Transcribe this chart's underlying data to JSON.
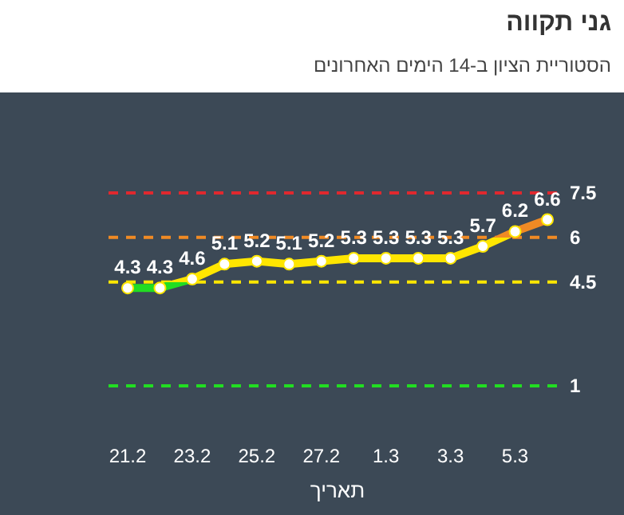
{
  "chart_data": {
    "type": "line",
    "title": "גני תקווה",
    "subtitle": "הסטוריית הציון ב-14 הימים האחרונים",
    "xlabel": "תאריך",
    "categories": [
      "21.2",
      null,
      "23.2",
      null,
      "25.2",
      null,
      "27.2",
      null,
      "1.3",
      null,
      "3.3",
      null,
      "5.3",
      null
    ],
    "series": [
      {
        "color": "#ffe600",
        "values": [
          4.3,
          4.3,
          4.6,
          5.1,
          5.2,
          5.1,
          5.2,
          5.3,
          5.3,
          5.3,
          5.3,
          5.7,
          6.2,
          6.6
        ]
      }
    ],
    "ref_lines": [
      {
        "axis": "y",
        "value": 1,
        "label": "1",
        "color": "#22dd22",
        "line_style": "dashed"
      },
      {
        "axis": "y",
        "value": 4.5,
        "label": "4.5",
        "color": "#ffe600",
        "line_style": "dashed"
      },
      {
        "axis": "y",
        "value": 6,
        "label": "6",
        "color": "#f08a24",
        "line_style": "dashed"
      },
      {
        "axis": "y",
        "value": 7.5,
        "label": "7.5",
        "color": "#e0282e",
        "line_style": "dashed"
      }
    ],
    "data_labels": true,
    "marker": "circle",
    "tick_labels": "x"
  }
}
